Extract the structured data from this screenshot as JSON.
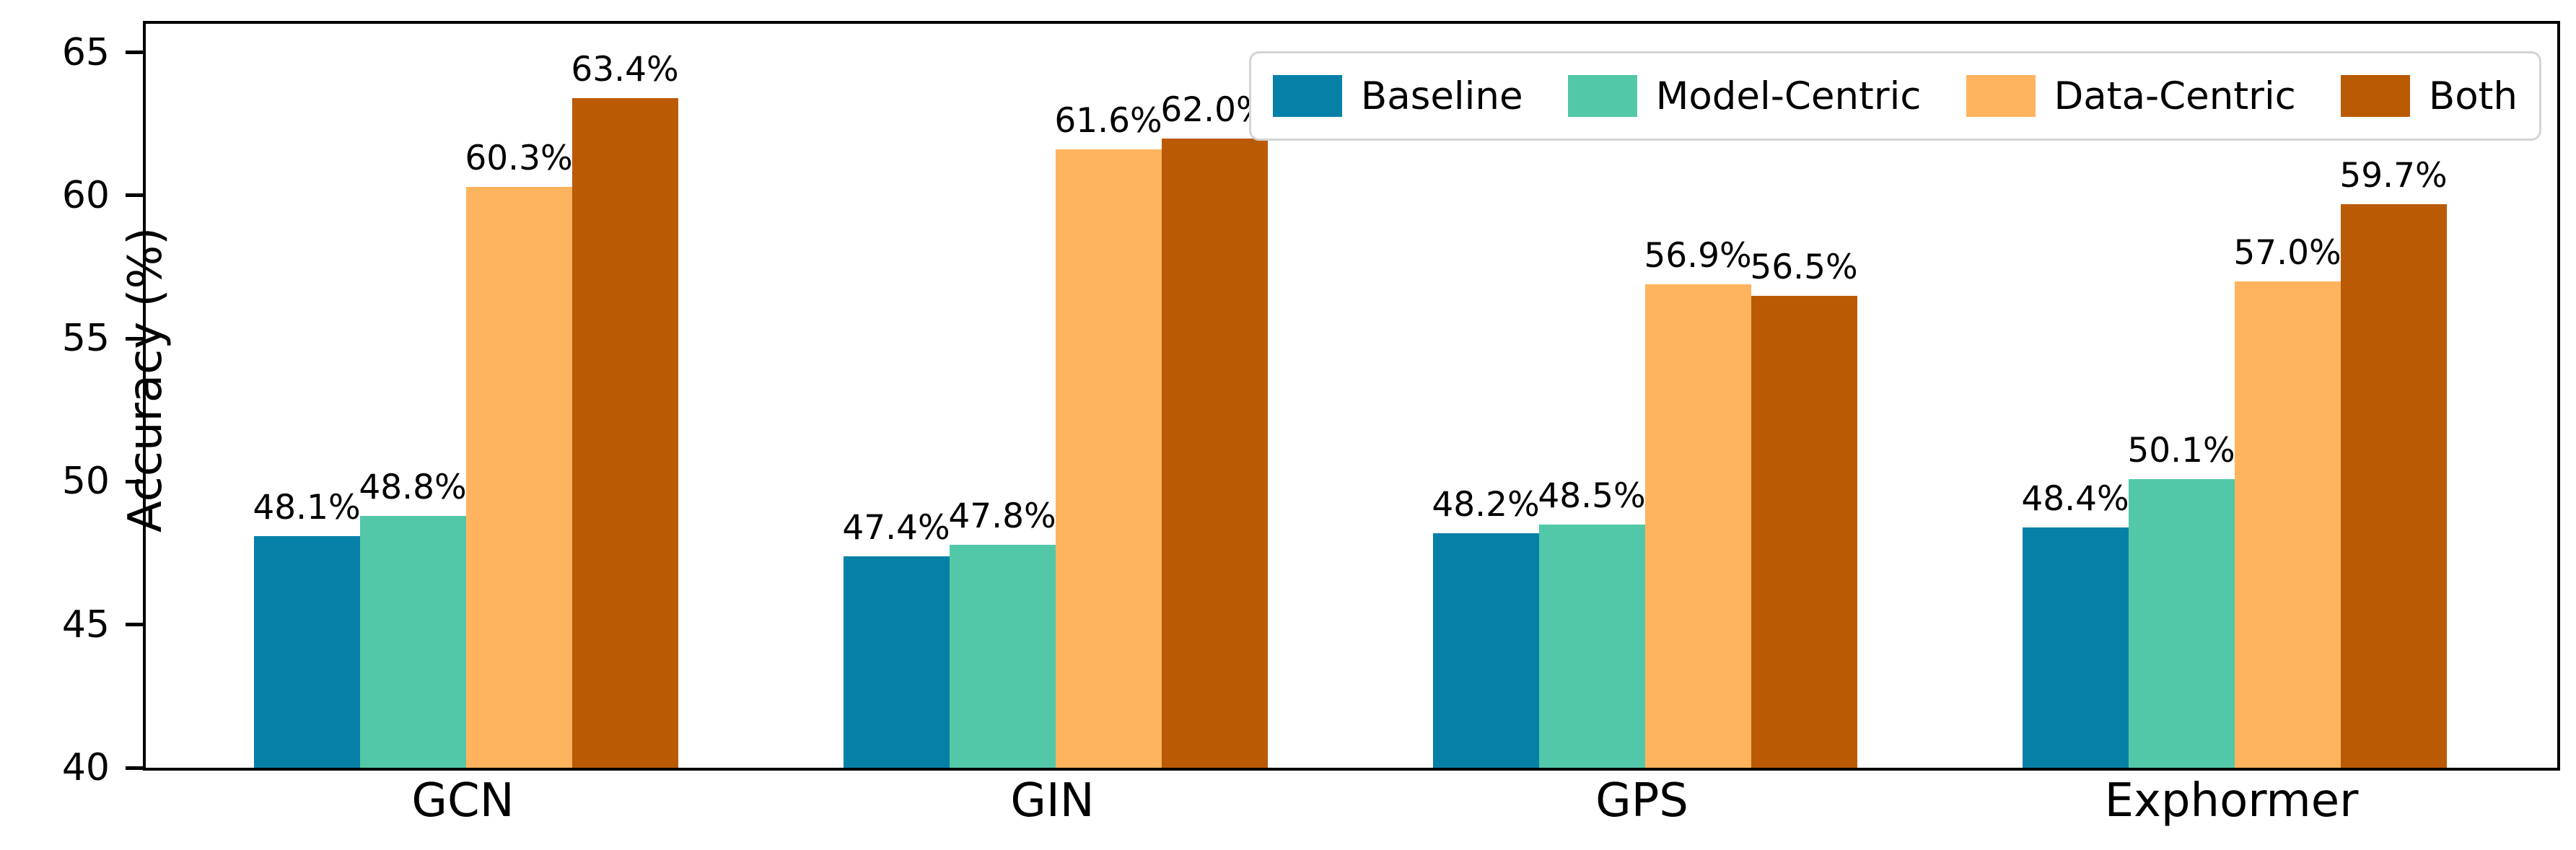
{
  "chart_data": {
    "type": "bar",
    "title": "",
    "xlabel": "",
    "ylabel": "Accuracy (%)",
    "categories": [
      "GCN",
      "GIN",
      "GPS",
      "Exphormer"
    ],
    "series": [
      {
        "name": "Baseline",
        "color": "#0780a8",
        "values": [
          48.1,
          47.4,
          48.2,
          48.4
        ]
      },
      {
        "name": "Model-Centric",
        "color": "#52c8a8",
        "values": [
          48.8,
          47.8,
          48.5,
          50.1
        ]
      },
      {
        "name": "Data-Centric",
        "color": "#feb45e",
        "values": [
          60.3,
          61.6,
          56.9,
          57.0
        ]
      },
      {
        "name": "Both",
        "color": "#bb5a04",
        "values": [
          63.4,
          62.0,
          56.5,
          59.7
        ]
      }
    ],
    "value_label_suffix": "%",
    "value_label_decimals": 1,
    "ylim": [
      40,
      66
    ],
    "yticks": [
      40,
      45,
      50,
      55,
      60,
      65
    ],
    "grid": false,
    "legend_position": "upper right",
    "colors": {
      "axis": "#000000",
      "text": "#000000",
      "legend_border": "#d4d4d4",
      "background": "#ffffff"
    }
  }
}
